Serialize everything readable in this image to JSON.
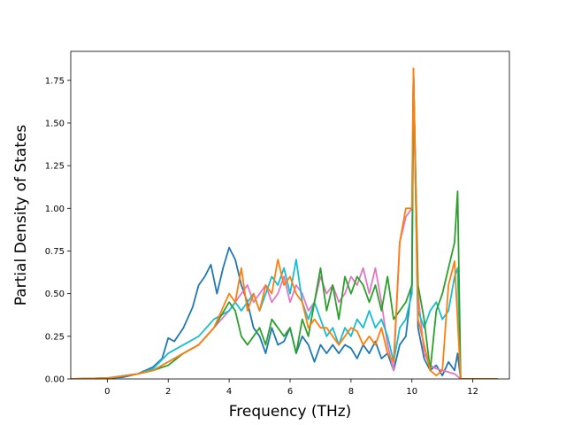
{
  "chart_data": {
    "type": "line",
    "title": "",
    "xlabel": "Frequency (THz)",
    "ylabel": "Partial Density of States",
    "xlim": [
      -1.2,
      13.2
    ],
    "ylim": [
      0,
      1.92
    ],
    "xticks": [
      0,
      2,
      4,
      6,
      8,
      10,
      12
    ],
    "xtick_labels": [
      "0",
      "2",
      "4",
      "6",
      "8",
      "10",
      "12"
    ],
    "yticks": [
      0,
      0.25,
      0.5,
      0.75,
      1.0,
      1.25,
      1.5,
      1.75
    ],
    "ytick_labels": [
      "0.00",
      "0.25",
      "0.50",
      "0.75",
      "1.00",
      "1.25",
      "1.50",
      "1.75"
    ],
    "grid": false,
    "legend": "none",
    "series": [
      {
        "color": "#1f77b4",
        "x": [
          -1.2,
          -0.5,
          0,
          0.5,
          1.0,
          1.5,
          1.8,
          2.0,
          2.2,
          2.5,
          2.8,
          3.0,
          3.2,
          3.4,
          3.6,
          3.8,
          4.0,
          4.2,
          4.4,
          4.6,
          4.8,
          5.0,
          5.2,
          5.4,
          5.6,
          5.8,
          6.0,
          6.2,
          6.4,
          6.6,
          6.8,
          7.0,
          7.2,
          7.4,
          7.6,
          7.8,
          8.0,
          8.2,
          8.4,
          8.6,
          8.8,
          9.0,
          9.2,
          9.4,
          9.6,
          9.8,
          10.0,
          10.05,
          10.2,
          10.4,
          10.6,
          10.8,
          11.0,
          11.2,
          11.4,
          11.5,
          11.6,
          12.0,
          12.8
        ],
        "y": [
          0,
          0,
          0.005,
          0.01,
          0.03,
          0.07,
          0.12,
          0.24,
          0.22,
          0.3,
          0.42,
          0.55,
          0.6,
          0.67,
          0.5,
          0.65,
          0.77,
          0.7,
          0.55,
          0.45,
          0.3,
          0.25,
          0.15,
          0.3,
          0.2,
          0.22,
          0.3,
          0.15,
          0.25,
          0.2,
          0.1,
          0.2,
          0.15,
          0.2,
          0.15,
          0.2,
          0.18,
          0.12,
          0.2,
          0.15,
          0.22,
          0.12,
          0.15,
          0.05,
          0.2,
          0.25,
          0.55,
          1.82,
          0.3,
          0.12,
          0.05,
          0.08,
          0.02,
          0.1,
          0.05,
          0.15,
          0.0,
          0,
          0
        ]
      },
      {
        "color": "#e377c2",
        "x": [
          -1.2,
          0,
          1.0,
          1.5,
          2.0,
          2.5,
          3.0,
          3.5,
          4.0,
          4.2,
          4.4,
          4.6,
          4.8,
          5.0,
          5.2,
          5.4,
          5.6,
          5.8,
          6.0,
          6.2,
          6.4,
          6.6,
          6.8,
          7.0,
          7.2,
          7.4,
          7.6,
          7.8,
          8.0,
          8.2,
          8.4,
          8.6,
          8.8,
          9.0,
          9.2,
          9.4,
          9.6,
          9.8,
          10.0,
          10.05,
          10.2,
          10.4,
          10.6,
          10.8,
          11.0,
          11.2,
          11.4,
          11.6,
          12.0,
          12.8
        ],
        "y": [
          0,
          0.005,
          0.03,
          0.05,
          0.1,
          0.15,
          0.2,
          0.3,
          0.4,
          0.45,
          0.5,
          0.55,
          0.45,
          0.5,
          0.55,
          0.45,
          0.5,
          0.6,
          0.45,
          0.55,
          0.5,
          0.4,
          0.45,
          0.6,
          0.5,
          0.55,
          0.45,
          0.5,
          0.6,
          0.55,
          0.65,
          0.5,
          0.65,
          0.45,
          0.2,
          0.05,
          0.8,
          0.95,
          1.0,
          1.8,
          0.5,
          0.15,
          0.08,
          0.06,
          0.05,
          0.04,
          0.03,
          0.0,
          0,
          0
        ]
      },
      {
        "color": "#17becf",
        "x": [
          -1.2,
          0,
          1.0,
          1.5,
          2.0,
          2.5,
          3.0,
          3.5,
          4.0,
          4.2,
          4.4,
          4.6,
          4.8,
          5.0,
          5.2,
          5.4,
          5.6,
          5.8,
          6.0,
          6.2,
          6.4,
          6.6,
          6.8,
          7.0,
          7.2,
          7.4,
          7.6,
          7.8,
          8.0,
          8.2,
          8.4,
          8.6,
          8.8,
          9.0,
          9.2,
          9.4,
          9.6,
          9.8,
          10.0,
          10.05,
          10.2,
          10.4,
          10.6,
          10.8,
          11.0,
          11.2,
          11.4,
          11.5,
          11.6,
          12.0,
          12.8
        ],
        "y": [
          0,
          0.005,
          0.03,
          0.06,
          0.15,
          0.2,
          0.25,
          0.35,
          0.4,
          0.45,
          0.4,
          0.45,
          0.5,
          0.4,
          0.5,
          0.6,
          0.55,
          0.65,
          0.5,
          0.7,
          0.45,
          0.35,
          0.45,
          0.35,
          0.25,
          0.3,
          0.2,
          0.3,
          0.25,
          0.35,
          0.3,
          0.4,
          0.3,
          0.35,
          0.25,
          0.1,
          0.3,
          0.35,
          0.5,
          1.8,
          0.4,
          0.3,
          0.4,
          0.45,
          0.35,
          0.4,
          0.6,
          0.65,
          0.0,
          0,
          0
        ]
      },
      {
        "color": "#2ca02c",
        "x": [
          -1.2,
          0,
          1.0,
          1.5,
          2.0,
          2.5,
          3.0,
          3.5,
          4.0,
          4.2,
          4.4,
          4.6,
          4.8,
          5.0,
          5.2,
          5.4,
          5.6,
          5.8,
          6.0,
          6.2,
          6.4,
          6.6,
          6.8,
          7.0,
          7.2,
          7.4,
          7.6,
          7.8,
          8.0,
          8.2,
          8.4,
          8.6,
          8.8,
          9.0,
          9.2,
          9.4,
          9.6,
          9.8,
          10.0,
          10.05,
          10.2,
          10.4,
          10.6,
          10.8,
          11.0,
          11.2,
          11.4,
          11.5,
          11.6,
          12.0,
          12.8
        ],
        "y": [
          0,
          0.005,
          0.03,
          0.05,
          0.08,
          0.15,
          0.2,
          0.3,
          0.45,
          0.4,
          0.25,
          0.2,
          0.25,
          0.3,
          0.2,
          0.35,
          0.3,
          0.25,
          0.3,
          0.15,
          0.35,
          0.25,
          0.45,
          0.65,
          0.4,
          0.55,
          0.35,
          0.6,
          0.5,
          0.6,
          0.55,
          0.45,
          0.55,
          0.4,
          0.6,
          0.35,
          0.4,
          0.45,
          0.55,
          1.8,
          0.55,
          0.35,
          0.05,
          0.4,
          0.5,
          0.65,
          0.8,
          1.1,
          0.0,
          0,
          0
        ]
      },
      {
        "color": "#ff7f0e",
        "x": [
          -1.2,
          0,
          1.0,
          1.5,
          2.0,
          2.5,
          3.0,
          3.5,
          4.0,
          4.2,
          4.4,
          4.6,
          4.8,
          5.0,
          5.2,
          5.4,
          5.6,
          5.8,
          6.0,
          6.2,
          6.4,
          6.6,
          6.8,
          7.0,
          7.2,
          7.4,
          7.6,
          7.8,
          8.0,
          8.2,
          8.4,
          8.6,
          8.8,
          9.0,
          9.2,
          9.4,
          9.6,
          9.8,
          10.0,
          10.05,
          10.2,
          10.4,
          10.6,
          10.8,
          11.0,
          11.2,
          11.4,
          11.6,
          12.0,
          12.8
        ],
        "y": [
          0,
          0.005,
          0.03,
          0.05,
          0.1,
          0.15,
          0.2,
          0.3,
          0.5,
          0.45,
          0.65,
          0.4,
          0.5,
          0.4,
          0.55,
          0.5,
          0.7,
          0.55,
          0.6,
          0.5,
          0.45,
          0.3,
          0.35,
          0.3,
          0.3,
          0.25,
          0.2,
          0.25,
          0.3,
          0.28,
          0.2,
          0.25,
          0.2,
          0.3,
          0.15,
          0.1,
          0.8,
          1.0,
          1.0,
          1.82,
          0.35,
          0.2,
          0.05,
          0.02,
          0.05,
          0.55,
          0.69,
          0.0,
          0,
          0
        ]
      }
    ]
  }
}
